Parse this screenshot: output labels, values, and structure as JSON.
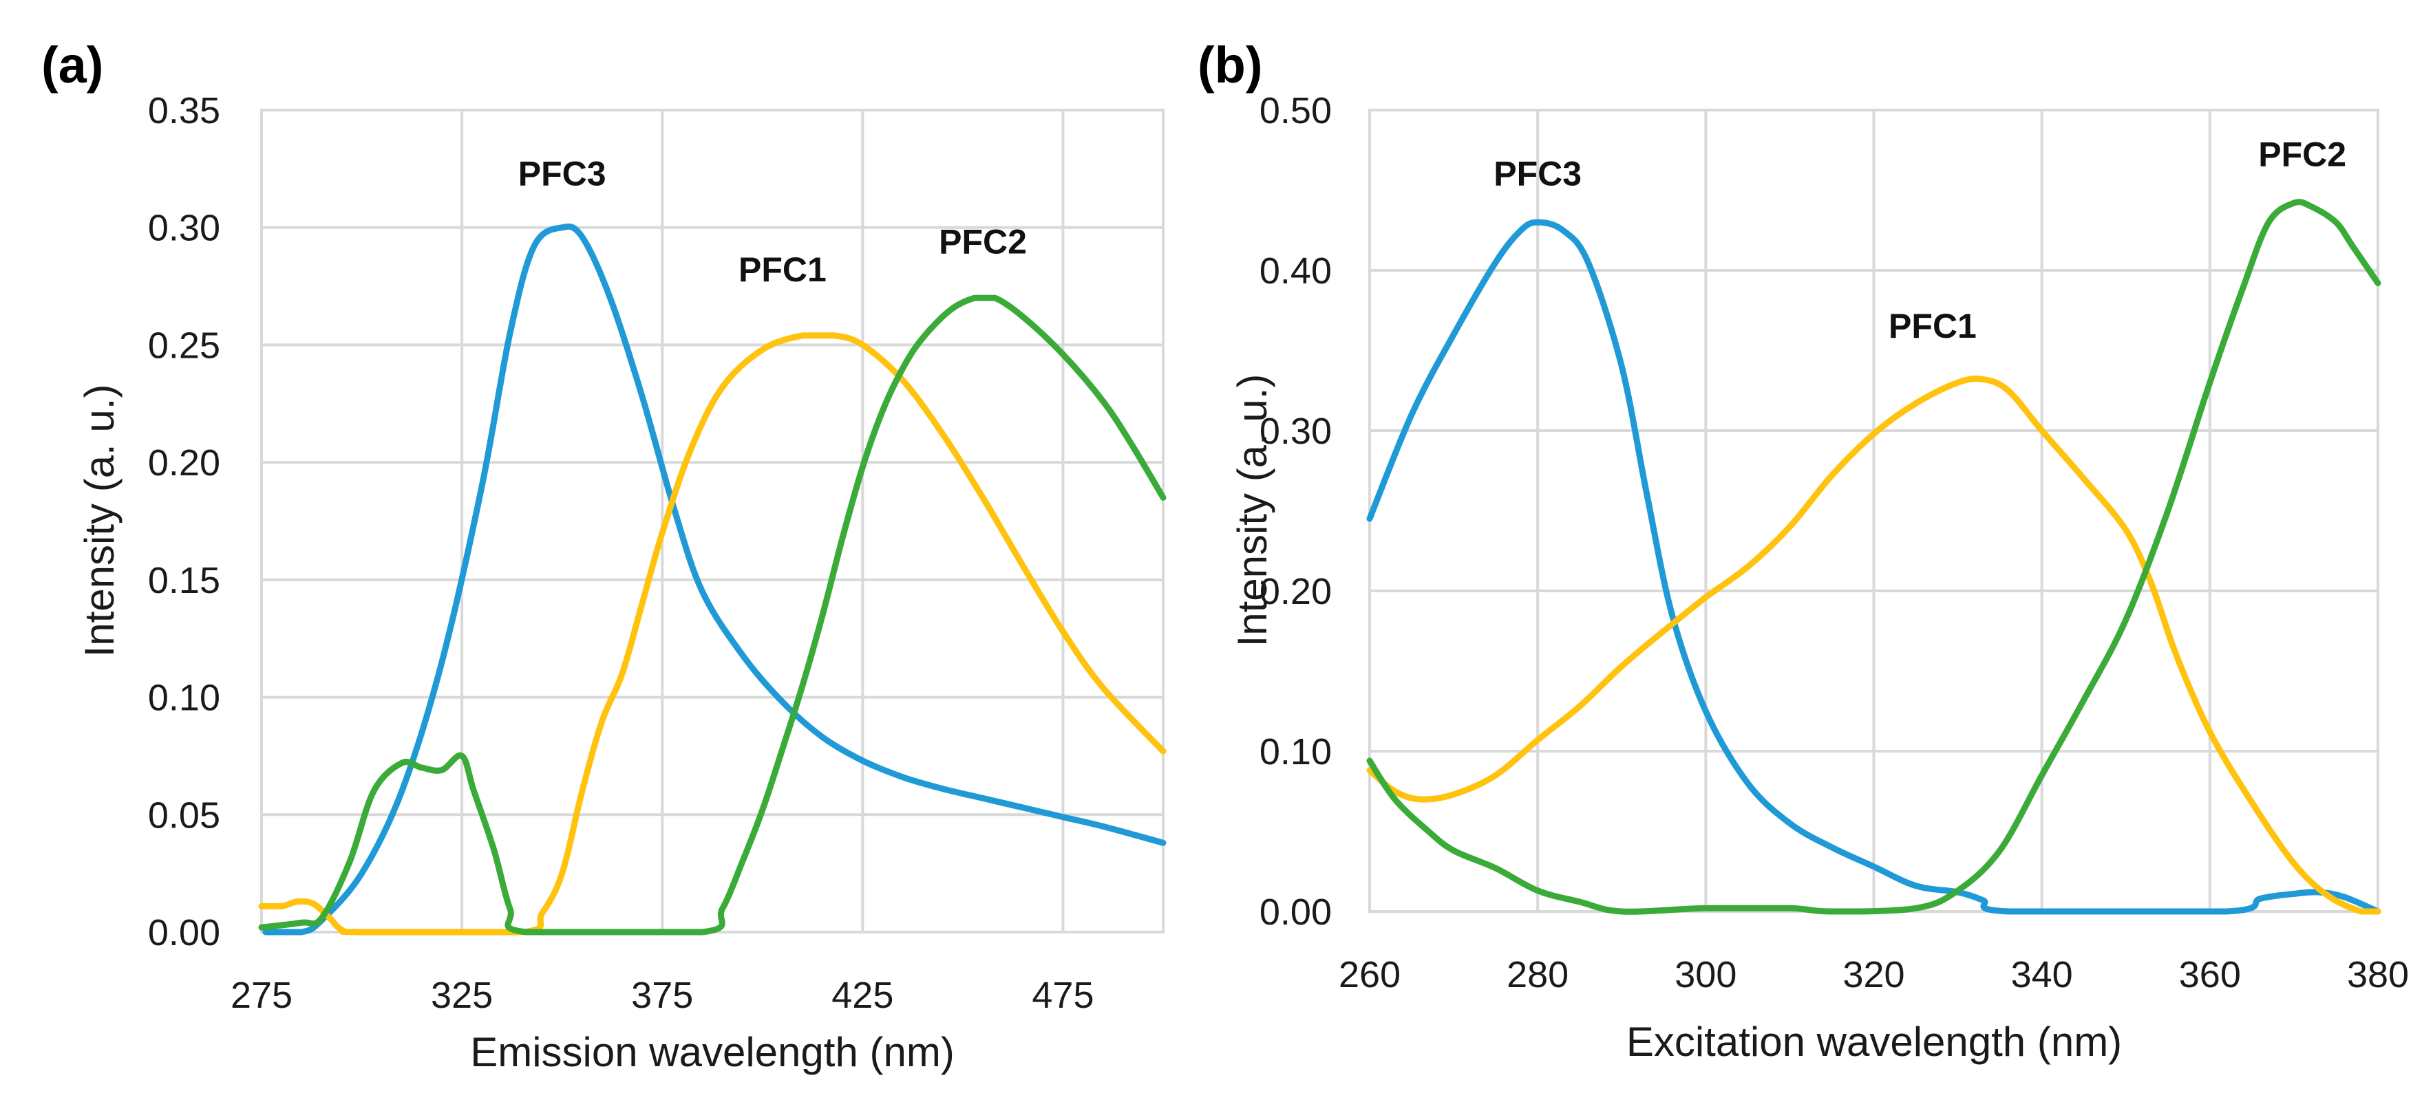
{
  "chart_data": [
    {
      "type": "line",
      "panel_label": "(a)",
      "xlabel": "Emission wavelength (nm)",
      "ylabel": "Intensity (a. u.)",
      "xlim": [
        275,
        500
      ],
      "ylim": [
        0,
        0.35
      ],
      "x_ticks": [
        275,
        325,
        375,
        425,
        475
      ],
      "x_tick_labels": [
        "275",
        "325",
        "375",
        "425",
        "475"
      ],
      "y_ticks": [
        0,
        0.05,
        0.1,
        0.15,
        0.2,
        0.25,
        0.3,
        0.35
      ],
      "y_tick_labels": [
        "0.00",
        "0.05",
        "0.10",
        "0.15",
        "0.20",
        "0.25",
        "0.30",
        "0.35"
      ],
      "grid": true,
      "series": [
        {
          "name": "PFC3",
          "color": "#1f9ad6",
          "label": {
            "text": "PFC3",
            "x": 350,
            "y": 0.318
          },
          "points": [
            [
              276,
              0
            ],
            [
              285,
              0
            ],
            [
              290,
              0.005
            ],
            [
              300,
              0.025
            ],
            [
              310,
              0.06
            ],
            [
              320,
              0.115
            ],
            [
              330,
              0.19
            ],
            [
              337,
              0.255
            ],
            [
              343,
              0.292
            ],
            [
              350,
              0.3
            ],
            [
              355,
              0.296
            ],
            [
              362,
              0.27
            ],
            [
              370,
              0.228
            ],
            [
              378,
              0.18
            ],
            [
              385,
              0.145
            ],
            [
              395,
              0.118
            ],
            [
              405,
              0.098
            ],
            [
              415,
              0.083
            ],
            [
              425,
              0.073
            ],
            [
              435,
              0.066
            ],
            [
              445,
              0.061
            ],
            [
              455,
              0.057
            ],
            [
              465,
              0.053
            ],
            [
              475,
              0.049
            ],
            [
              485,
              0.045
            ],
            [
              500,
              0.038
            ]
          ]
        },
        {
          "name": "PFC1",
          "color": "#ffc20e",
          "label": {
            "text": "PFC1",
            "x": 405,
            "y": 0.277
          },
          "points": [
            [
              275,
              0.011
            ],
            [
              280,
              0.011
            ],
            [
              284,
              0.013
            ],
            [
              288,
              0.012
            ],
            [
              292,
              0.006
            ],
            [
              295,
              0.001
            ],
            [
              300,
              0
            ],
            [
              340,
              0
            ],
            [
              345,
              0.008
            ],
            [
              350,
              0.025
            ],
            [
              355,
              0.06
            ],
            [
              360,
              0.09
            ],
            [
              365,
              0.11
            ],
            [
              370,
              0.14
            ],
            [
              375,
              0.17
            ],
            [
              382,
              0.205
            ],
            [
              390,
              0.232
            ],
            [
              400,
              0.248
            ],
            [
              410,
              0.254
            ],
            [
              418,
              0.254
            ],
            [
              425,
              0.25
            ],
            [
              435,
              0.235
            ],
            [
              445,
              0.212
            ],
            [
              455,
              0.185
            ],
            [
              465,
              0.156
            ],
            [
              475,
              0.128
            ],
            [
              485,
              0.104
            ],
            [
              500,
              0.077
            ]
          ]
        },
        {
          "name": "PFC2",
          "color": "#3aab38",
          "label": {
            "text": "PFC2",
            "x": 455,
            "y": 0.289
          },
          "points": [
            [
              275,
              0.002
            ],
            [
              285,
              0.004
            ],
            [
              290,
              0.006
            ],
            [
              297,
              0.03
            ],
            [
              303,
              0.06
            ],
            [
              310,
              0.072
            ],
            [
              315,
              0.07
            ],
            [
              320,
              0.069
            ],
            [
              325,
              0.075
            ],
            [
              328,
              0.06
            ],
            [
              333,
              0.035
            ],
            [
              337,
              0.01
            ],
            [
              341,
              0
            ],
            [
              385,
              0
            ],
            [
              390,
              0.01
            ],
            [
              395,
              0.03
            ],
            [
              400,
              0.052
            ],
            [
              405,
              0.078
            ],
            [
              410,
              0.105
            ],
            [
              415,
              0.135
            ],
            [
              420,
              0.168
            ],
            [
              425,
              0.198
            ],
            [
              430,
              0.222
            ],
            [
              435,
              0.24
            ],
            [
              440,
              0.253
            ],
            [
              447,
              0.265
            ],
            [
              453,
              0.27
            ],
            [
              458,
              0.27
            ],
            [
              465,
              0.262
            ],
            [
              475,
              0.246
            ],
            [
              485,
              0.226
            ],
            [
              492,
              0.208
            ],
            [
              500,
              0.185
            ]
          ]
        }
      ]
    },
    {
      "type": "line",
      "panel_label": "(b)",
      "xlabel": "Excitation wavelength (nm)",
      "ylabel": "Intensity (a. u.)",
      "xlim": [
        260,
        380
      ],
      "ylim": [
        0,
        0.5
      ],
      "x_ticks": [
        260,
        280,
        300,
        320,
        340,
        360,
        380
      ],
      "x_tick_labels": [
        "260",
        "280",
        "300",
        "320",
        "340",
        "360",
        "380"
      ],
      "y_ticks": [
        0,
        0.1,
        0.2,
        0.3,
        0.4,
        0.5
      ],
      "y_tick_labels": [
        "0.00",
        "0.10",
        "0.20",
        "0.30",
        "0.40",
        "0.50"
      ],
      "grid": true,
      "series": [
        {
          "name": "PFC3",
          "color": "#1f9ad6",
          "label": {
            "text": "PFC3",
            "x": 280,
            "y": 0.453
          },
          "points": [
            [
              260,
              0.245
            ],
            [
              265,
              0.31
            ],
            [
              270,
              0.36
            ],
            [
              275,
              0.405
            ],
            [
              278,
              0.425
            ],
            [
              280,
              0.43
            ],
            [
              283,
              0.425
            ],
            [
              286,
              0.405
            ],
            [
              290,
              0.34
            ],
            [
              293,
              0.26
            ],
            [
              296,
              0.185
            ],
            [
              300,
              0.125
            ],
            [
              305,
              0.08
            ],
            [
              310,
              0.055
            ],
            [
              315,
              0.04
            ],
            [
              320,
              0.028
            ],
            [
              325,
              0.016
            ],
            [
              330,
              0.012
            ],
            [
              333,
              0.007
            ],
            [
              336,
              0
            ],
            [
              362,
              0
            ],
            [
              366,
              0.008
            ],
            [
              370,
              0.011
            ],
            [
              373,
              0.012
            ],
            [
              376,
              0.009
            ],
            [
              380,
              0
            ]
          ]
        },
        {
          "name": "PFC1",
          "color": "#ffc20e",
          "label": {
            "text": "PFC1",
            "x": 327,
            "y": 0.358
          },
          "points": [
            [
              260,
              0.088
            ],
            [
              263,
              0.075
            ],
            [
              266,
              0.07
            ],
            [
              270,
              0.073
            ],
            [
              275,
              0.085
            ],
            [
              280,
              0.107
            ],
            [
              285,
              0.128
            ],
            [
              290,
              0.153
            ],
            [
              295,
              0.175
            ],
            [
              300,
              0.196
            ],
            [
              305,
              0.215
            ],
            [
              310,
              0.24
            ],
            [
              315,
              0.272
            ],
            [
              320,
              0.298
            ],
            [
              325,
              0.317
            ],
            [
              330,
              0.33
            ],
            [
              333,
              0.332
            ],
            [
              336,
              0.325
            ],
            [
              340,
              0.3
            ],
            [
              345,
              0.27
            ],
            [
              350,
              0.238
            ],
            [
              353,
              0.205
            ],
            [
              356,
              0.16
            ],
            [
              360,
              0.112
            ],
            [
              365,
              0.068
            ],
            [
              370,
              0.03
            ],
            [
              374,
              0.01
            ],
            [
              378,
              0
            ],
            [
              380,
              0
            ]
          ]
        },
        {
          "name": "PFC2",
          "color": "#3aab38",
          "label": {
            "text": "PFC2",
            "x": 371,
            "y": 0.465
          },
          "points": [
            [
              260,
              0.094
            ],
            [
              263,
              0.07
            ],
            [
              267,
              0.05
            ],
            [
              270,
              0.038
            ],
            [
              275,
              0.027
            ],
            [
              280,
              0.013
            ],
            [
              285,
              0.006
            ],
            [
              290,
              0
            ],
            [
              300,
              0.002
            ],
            [
              310,
              0.002
            ],
            [
              315,
              0
            ],
            [
              325,
              0.002
            ],
            [
              330,
              0.013
            ],
            [
              335,
              0.038
            ],
            [
              340,
              0.085
            ],
            [
              345,
              0.132
            ],
            [
              350,
              0.182
            ],
            [
              355,
              0.25
            ],
            [
              360,
              0.33
            ],
            [
              364,
              0.39
            ],
            [
              367,
              0.43
            ],
            [
              370,
              0.442
            ],
            [
              372,
              0.44
            ],
            [
              375,
              0.43
            ],
            [
              377,
              0.415
            ],
            [
              380,
              0.392
            ]
          ]
        }
      ]
    }
  ]
}
